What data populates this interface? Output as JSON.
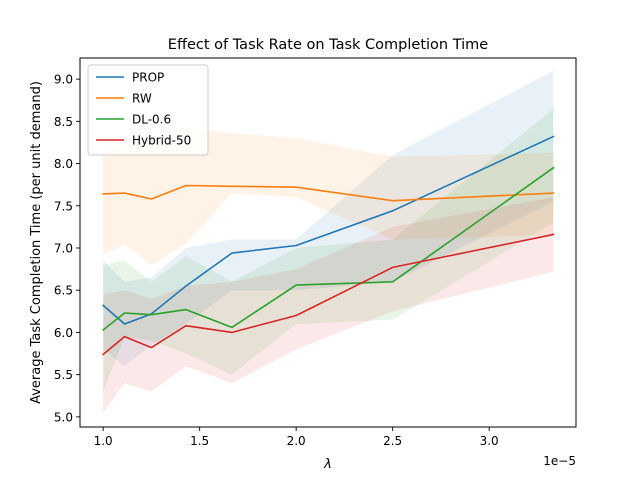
{
  "chart_data": {
    "type": "line",
    "title": "Effect of Task Rate on Task Completion Time",
    "xlabel": "λ",
    "ylabel": "Average Task Completion Time (per unit demand)",
    "x_offset_text": "1e−5",
    "x_scale_note": "x values in units of 1e-5",
    "xlim": [
      0.88,
      3.45
    ],
    "ylim": [
      4.88,
      9.25
    ],
    "x": [
      1.0,
      1.111,
      1.25,
      1.429,
      1.667,
      2.0,
      2.5,
      3.333
    ],
    "xticks": [
      1.0,
      1.5,
      2.0,
      2.5,
      3.0
    ],
    "xtick_labels": [
      "1.0",
      "1.5",
      "2.0",
      "2.5",
      "3.0"
    ],
    "yticks": [
      5.0,
      5.5,
      6.0,
      6.5,
      7.0,
      7.5,
      8.0,
      8.5,
      9.0
    ],
    "ytick_labels": [
      "5.0",
      "5.5",
      "6.0",
      "6.5",
      "7.0",
      "7.5",
      "8.0",
      "8.5",
      "9.0"
    ],
    "grid": false,
    "legend_position": "top-left",
    "series": [
      {
        "name": "PROP",
        "color": "#1f77b4",
        "values": [
          6.32,
          6.1,
          6.22,
          6.55,
          6.94,
          7.03,
          7.44,
          8.32
        ],
        "lower": [
          5.8,
          5.6,
          5.85,
          6.1,
          6.5,
          6.5,
          6.6,
          7.55
        ],
        "upper": [
          6.85,
          6.6,
          6.65,
          7.0,
          7.1,
          7.1,
          8.1,
          9.1
        ]
      },
      {
        "name": "RW",
        "color": "#ff7f0e",
        "values": [
          7.64,
          7.65,
          7.58,
          7.74,
          7.73,
          7.72,
          7.56,
          7.65
        ],
        "lower": [
          6.92,
          7.04,
          6.8,
          7.05,
          7.65,
          7.6,
          7.1,
          7.15
        ],
        "upper": [
          8.15,
          8.2,
          8.3,
          8.42,
          8.36,
          8.3,
          8.08,
          8.13
        ]
      },
      {
        "name": "DL-0.6",
        "color": "#2ca02c",
        "values": [
          6.03,
          6.23,
          6.21,
          6.27,
          6.06,
          6.56,
          6.6,
          7.95
        ],
        "lower": [
          5.3,
          5.95,
          5.9,
          5.75,
          5.5,
          6.1,
          6.15,
          7.3
        ],
        "upper": [
          6.8,
          6.85,
          6.6,
          6.9,
          6.6,
          7.0,
          7.1,
          8.65
        ]
      },
      {
        "name": "Hybrid-50",
        "color": "#d62728",
        "values": [
          5.74,
          5.95,
          5.82,
          6.08,
          6.0,
          6.2,
          6.77,
          7.16
        ],
        "lower": [
          5.05,
          5.4,
          5.3,
          5.6,
          5.4,
          5.8,
          6.25,
          6.72
        ],
        "upper": [
          6.45,
          6.5,
          6.4,
          6.55,
          6.6,
          6.75,
          7.25,
          7.6
        ]
      }
    ]
  }
}
